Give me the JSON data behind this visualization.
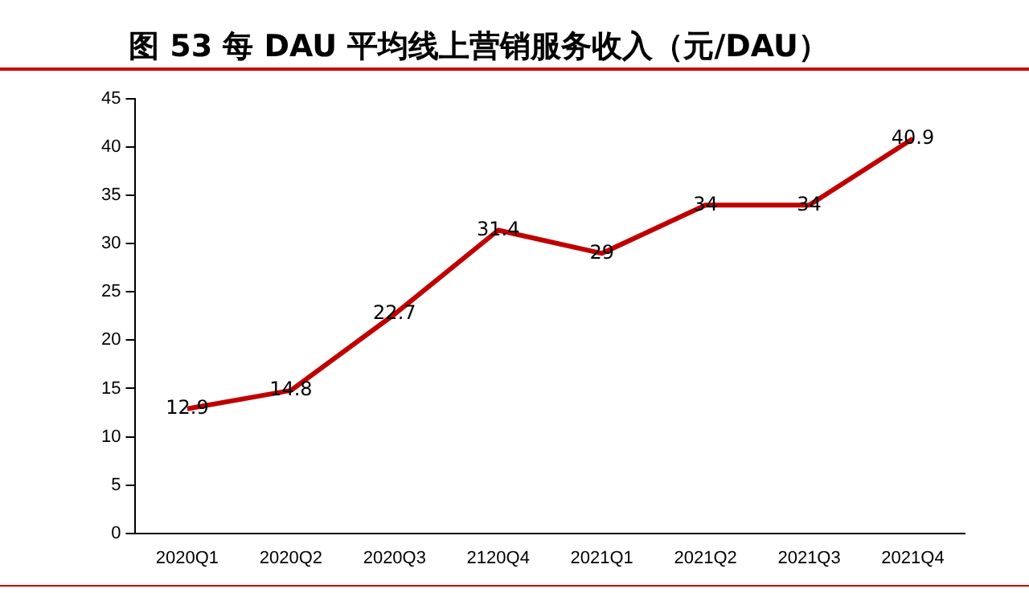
{
  "chart_data": {
    "type": "line",
    "title": "图 53 每 DAU 平均线上营销服务收入（元/DAU）",
    "categories": [
      "2020Q1",
      "2020Q2",
      "2020Q3",
      "2120Q4",
      "2021Q1",
      "2021Q2",
      "2021Q3",
      "2021Q4"
    ],
    "series": [
      {
        "color": "#c00000",
        "values": [
          12.9,
          14.8,
          22.7,
          31.4,
          29,
          34,
          34,
          40.9
        ]
      }
    ],
    "ylim": [
      0,
      45
    ],
    "yticks": [
      0,
      5,
      10,
      15,
      20,
      25,
      30,
      35,
      40,
      45
    ],
    "grid": false,
    "legend": false,
    "marker": "none",
    "line_style": "solid",
    "data_labels": true
  }
}
